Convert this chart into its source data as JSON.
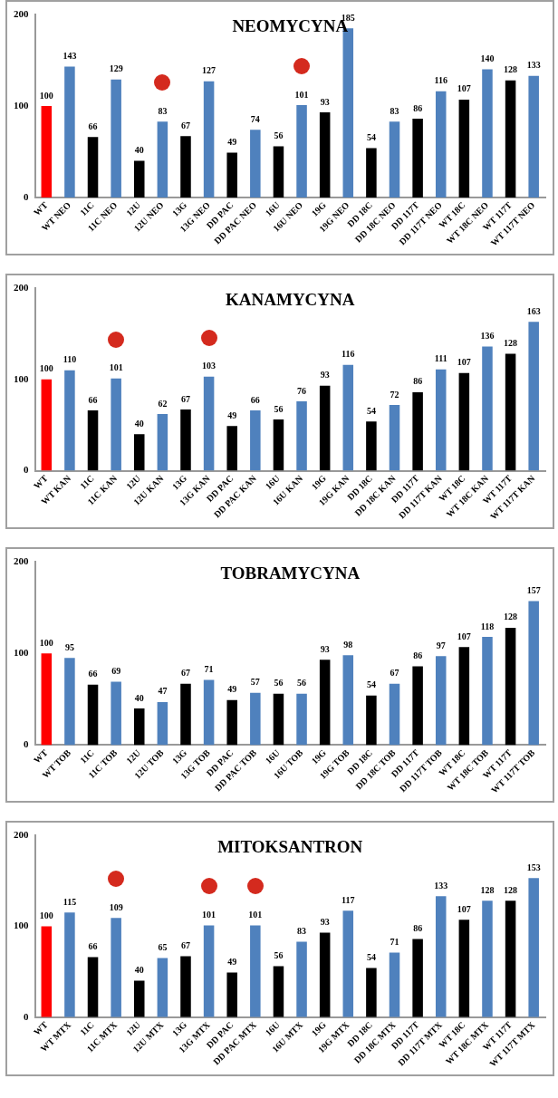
{
  "chart_data": [
    {
      "type": "bar",
      "title": "NEOMYCYNA",
      "categories": [
        "WT",
        "WT NEO",
        "11C",
        "11C NEO",
        "12U",
        "12U NEO",
        "13G",
        "13G NEO",
        "DD PAC",
        "DD PAC NEO",
        "16U",
        "16U NEO",
        "19G",
        "19G NEO",
        "DD 18C",
        "DD 18C NEO",
        "DD 117T",
        "DD 117T NEO",
        "WT 18C",
        "WT 18C NEO",
        "WT 117T",
        "WT 117T NEO"
      ],
      "values": [
        100,
        143,
        66,
        129,
        40,
        83,
        67,
        127,
        49,
        74,
        56,
        101,
        93,
        185,
        54,
        83,
        86,
        116,
        107,
        140,
        128,
        133
      ],
      "colors": [
        "#ff0000",
        "#4f81bd",
        "#000000",
        "#4f81bd",
        "#000000",
        "#4f81bd",
        "#000000",
        "#4f81bd",
        "#000000",
        "#4f81bd",
        "#000000",
        "#4f81bd",
        "#000000",
        "#4f81bd",
        "#000000",
        "#4f81bd",
        "#000000",
        "#4f81bd",
        "#000000",
        "#4f81bd",
        "#000000",
        "#4f81bd"
      ],
      "ylim": [
        0,
        200
      ],
      "yticks": [
        0,
        100,
        200
      ],
      "grid": false,
      "legend": false,
      "data_labels": true
    },
    {
      "type": "bar",
      "title": "KANAMYCYNA",
      "categories": [
        "WT",
        "WT KAN",
        "11C",
        "11C KAN",
        "12U",
        "12U KAN",
        "13G",
        "13G KAN",
        "DD PAC",
        "DD PAC KAN",
        "16U",
        "16U KAN",
        "19G",
        "19G KAN",
        "DD 18C",
        "DD 18C KAN",
        "DD 117T",
        "DD 117T KAN",
        "WT 18C",
        "WT 18C KAN",
        "WT 117T",
        "WT 117T KAN"
      ],
      "values": [
        100,
        110,
        66,
        101,
        40,
        62,
        67,
        103,
        49,
        66,
        56,
        76,
        93,
        116,
        54,
        72,
        86,
        111,
        107,
        136,
        128,
        163
      ],
      "colors": [
        "#ff0000",
        "#4f81bd",
        "#000000",
        "#4f81bd",
        "#000000",
        "#4f81bd",
        "#000000",
        "#4f81bd",
        "#000000",
        "#4f81bd",
        "#000000",
        "#4f81bd",
        "#000000",
        "#4f81bd",
        "#000000",
        "#4f81bd",
        "#000000",
        "#4f81bd",
        "#000000",
        "#4f81bd",
        "#000000",
        "#4f81bd"
      ],
      "ylim": [
        0,
        200
      ],
      "yticks": [
        0,
        100,
        200
      ],
      "grid": false,
      "legend": false,
      "data_labels": true
    },
    {
      "type": "bar",
      "title": "TOBRAMYCYNA",
      "categories": [
        "WT",
        "WT TOB",
        "11C",
        "11C TOB",
        "12U",
        "12U TOB",
        "13G",
        "13G TOB",
        "DD PAC",
        "DD PAC TOB",
        "16U",
        "16U TOB",
        "19G",
        "19G TOB",
        "DD 18C",
        "DD 18C TOB",
        "DD 117T",
        "DD 117T TOB",
        "WT 18C",
        "WT 18C TOB",
        "WT 117T",
        "WT 117T TOB"
      ],
      "values": [
        100,
        95,
        66,
        69,
        40,
        47,
        67,
        71,
        49,
        57,
        56,
        56,
        93,
        98,
        54,
        67,
        86,
        97,
        107,
        118,
        128,
        157
      ],
      "colors": [
        "#ff0000",
        "#4f81bd",
        "#000000",
        "#4f81bd",
        "#000000",
        "#4f81bd",
        "#000000",
        "#4f81bd",
        "#000000",
        "#4f81bd",
        "#000000",
        "#4f81bd",
        "#000000",
        "#4f81bd",
        "#000000",
        "#4f81bd",
        "#000000",
        "#4f81bd",
        "#000000",
        "#4f81bd",
        "#000000",
        "#4f81bd"
      ],
      "ylim": [
        0,
        200
      ],
      "yticks": [
        0,
        100,
        200
      ],
      "grid": false,
      "legend": false,
      "data_labels": true
    },
    {
      "type": "bar",
      "title": "MITOKSANTRON",
      "categories": [
        "WT",
        "WT MTX",
        "11C",
        "11C MTX",
        "12U",
        "12U MTX",
        "13G",
        "13G MTX",
        "DD PAC",
        "DD PAC MTX",
        "16U",
        "16U MTX",
        "19G",
        "19G MTX",
        "DD 18C",
        "DD 18C MTX",
        "DD 117T",
        "DD 117T MTX",
        "WT 18C",
        "WT 18C MTX",
        "WT 117T",
        "WT 117T MTX"
      ],
      "values": [
        100,
        115,
        66,
        109,
        40,
        65,
        67,
        101,
        49,
        101,
        56,
        83,
        93,
        117,
        54,
        71,
        86,
        133,
        107,
        128,
        128,
        153
      ],
      "colors": [
        "#ff0000",
        "#4f81bd",
        "#000000",
        "#4f81bd",
        "#000000",
        "#4f81bd",
        "#000000",
        "#4f81bd",
        "#000000",
        "#4f81bd",
        "#000000",
        "#4f81bd",
        "#000000",
        "#4f81bd",
        "#000000",
        "#4f81bd",
        "#000000",
        "#4f81bd",
        "#000000",
        "#4f81bd",
        "#000000",
        "#4f81bd"
      ],
      "ylim": [
        0,
        200
      ],
      "yticks": [
        0,
        100,
        200
      ],
      "grid": false,
      "legend": false,
      "data_labels": true
    }
  ]
}
